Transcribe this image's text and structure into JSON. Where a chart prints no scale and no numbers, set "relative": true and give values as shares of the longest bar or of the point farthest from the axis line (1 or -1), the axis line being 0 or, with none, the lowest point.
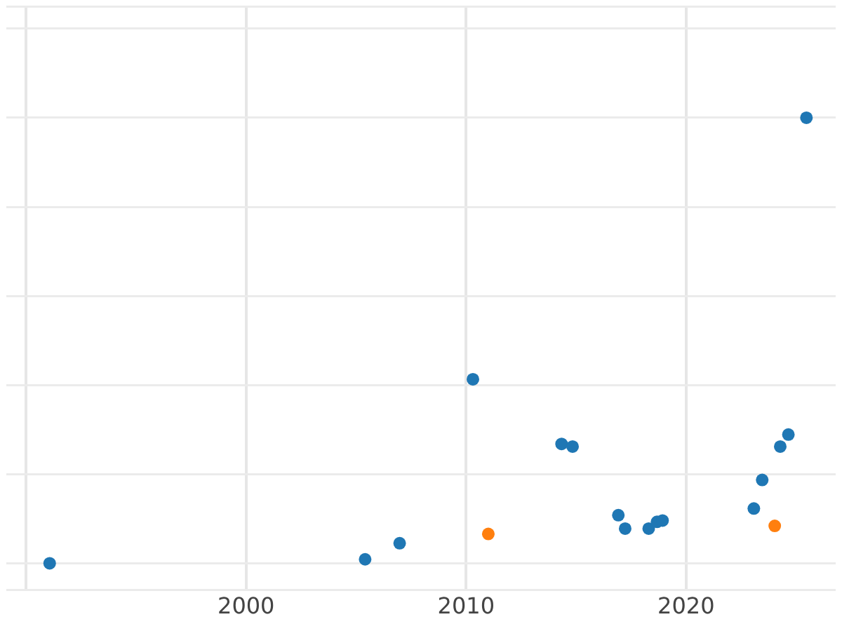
{
  "chart_data": {
    "type": "scatter",
    "relative": true,
    "marker": "circle",
    "grid": true,
    "legend": false,
    "xlim": [
      1989.1,
      2026.8
    ],
    "xticks": [
      {
        "value": 1990,
        "label": null
      },
      2000,
      2010,
      2020
    ],
    "series": [
      {
        "color": "#1f77b4",
        "x": [
          1991.07,
          2005.41,
          2006.98,
          2010.31,
          2014.34,
          2014.84,
          2016.92,
          2017.23,
          2018.3,
          2018.68,
          2018.93,
          2023.08,
          2023.46,
          2024.28,
          2024.65,
          2025.47
        ],
        "values": [
          0,
          0.009,
          0.045,
          0.413,
          0.268,
          0.262,
          0.108,
          0.078,
          0.078,
          0.093,
          0.096,
          0.123,
          0.187,
          0.262,
          0.289,
          1
        ]
      },
      {
        "color": "#ff7f0e",
        "x": [
          2011.01,
          2024.03
        ],
        "values": [
          0.066,
          0.084
        ]
      }
    ]
  }
}
